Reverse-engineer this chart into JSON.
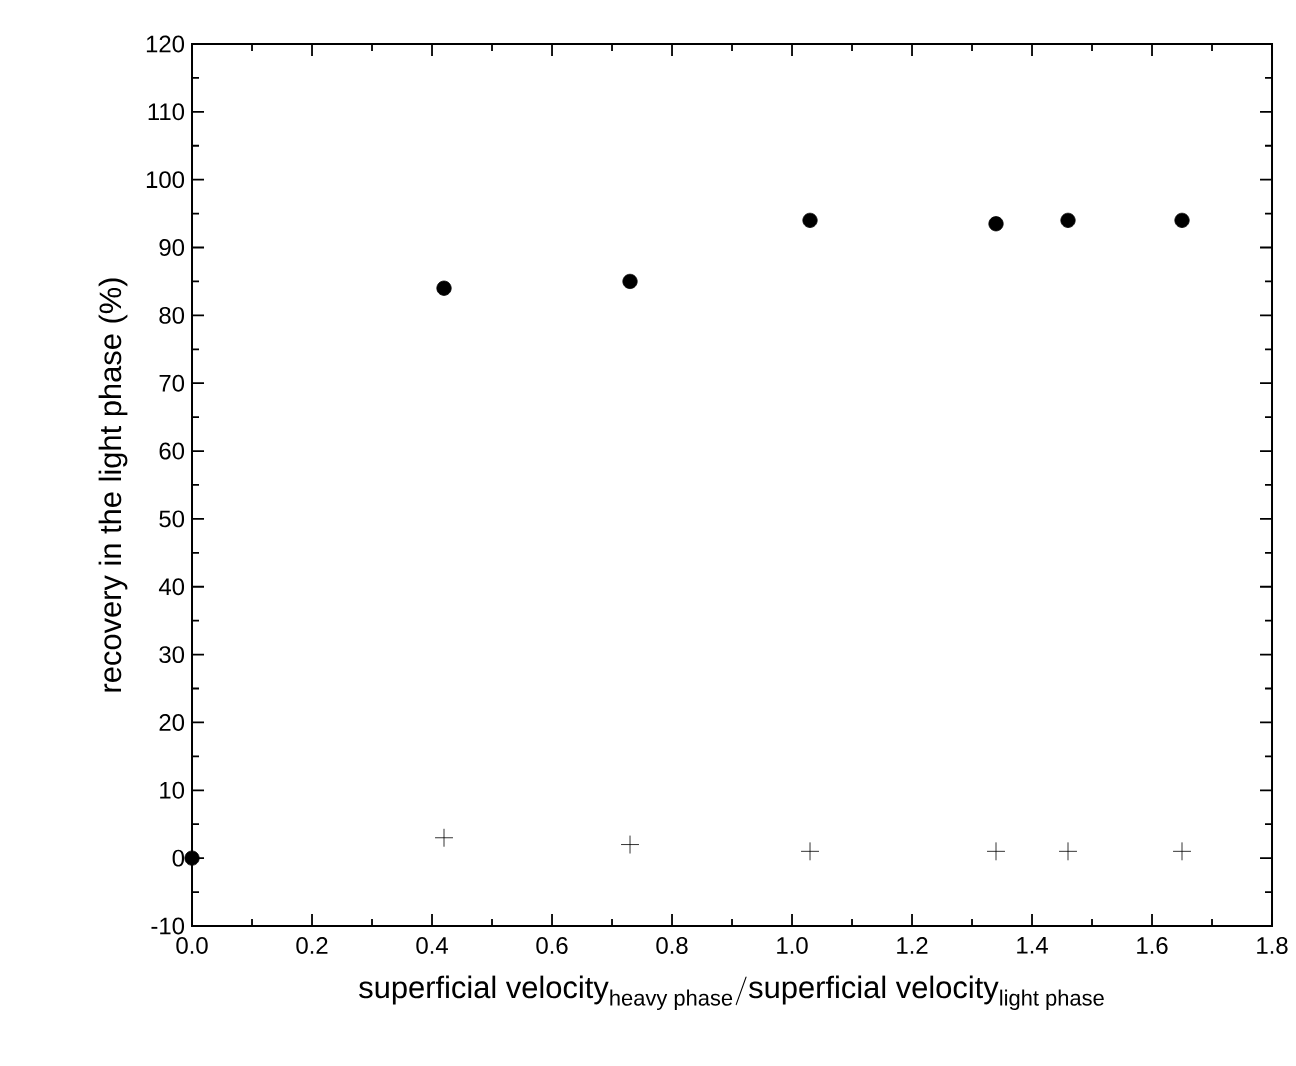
{
  "chart_data": {
    "type": "scatter",
    "xlabel": "\\textrm{superficial velocity}_{\\textrm{\\fontsize{11}{12}\\selectfont heavy phase}}/\\textrm{superficial velocity}_{\\textrm{\\fontsize{11}{12}\\selectfont light phase}}",
    "ylabel": "recovery in the light phase (%)",
    "series": [
      {
        "color": "#000000",
        "marker": "circle",
        "x": [
          0.0,
          0.42,
          0.73,
          1.03,
          1.34,
          1.46,
          1.65
        ],
        "values": [
          0,
          84,
          85,
          94,
          93.5,
          94,
          94
        ]
      },
      {
        "color": "#000000",
        "marker": "cross",
        "x": [
          0.42,
          0.73,
          1.03,
          1.34,
          1.46,
          1.65
        ],
        "values": [
          3,
          2,
          1,
          1,
          1,
          1
        ]
      }
    ],
    "xlim": [
      0,
      1.8
    ],
    "xticks": [
      {
        "value": 0,
        "label": "0.0"
      },
      0.2,
      0.4,
      0.6,
      0.8,
      {
        "value": 1,
        "label": "1.0"
      },
      1.2,
      1.4,
      1.6,
      1.8
    ],
    "ylim": [
      -10,
      120
    ],
    "yticks": [
      -10,
      0,
      10,
      20,
      30,
      40,
      50,
      60,
      70,
      80,
      90,
      100,
      110,
      120
    ],
    "grid": false
  }
}
